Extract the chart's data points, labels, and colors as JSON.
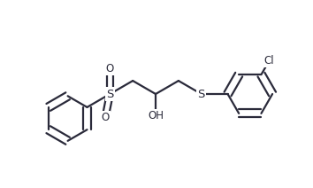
{
  "background_color": "#ffffff",
  "line_color": "#2a2a3a",
  "line_width": 1.6,
  "font_size": 8.5,
  "figsize": [
    3.54,
    2.12
  ],
  "dpi": 100,
  "xlim": [
    0,
    10
  ],
  "ylim": [
    0,
    6
  ]
}
